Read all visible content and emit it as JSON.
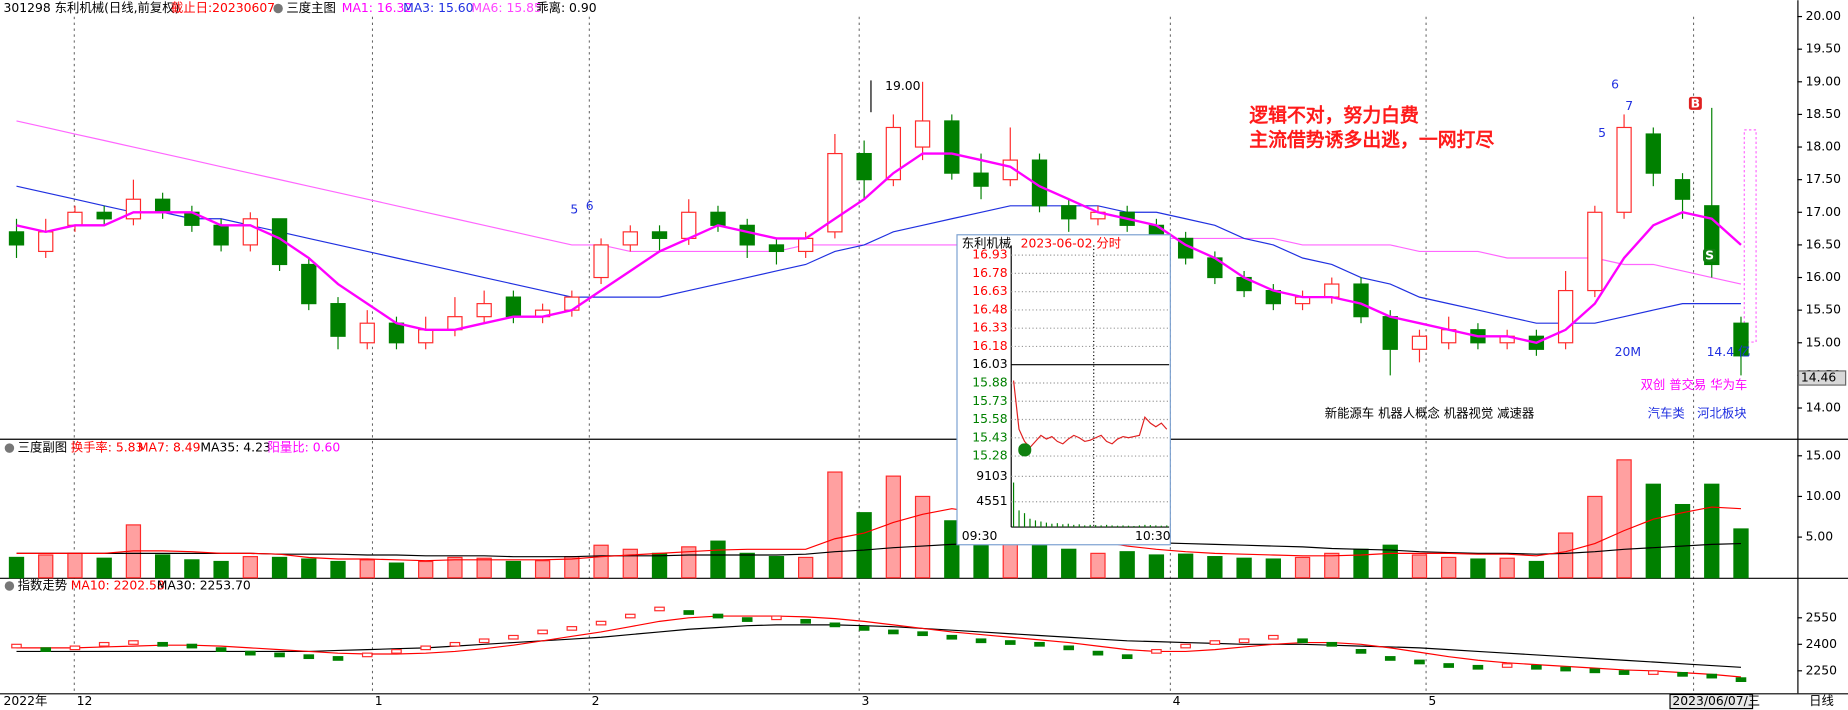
{
  "header": {
    "code_name": "301298 东利机械(日线,前复权)",
    "end_date": "截止日:20230607",
    "indicator": "三度主图",
    "ma1": "MA1: 16.32",
    "ma3": "MA3: 15.60",
    "ma6": "MA6: 15.85",
    "bias": "乖离: 0.90"
  },
  "main": {
    "ylim": [
      13.53,
      20.25
    ],
    "yticks": [
      {
        "value": 20,
        "label": "20.00"
      },
      {
        "value": 19.5,
        "label": "19.50"
      },
      {
        "value": 19,
        "label": "19.00"
      },
      {
        "value": 18.5,
        "label": "18.50"
      },
      {
        "value": 18,
        "label": "18.00"
      },
      {
        "value": 17.5,
        "label": "17.50"
      },
      {
        "value": 17,
        "label": "17.00"
      },
      {
        "value": 16.5,
        "label": "16.50"
      },
      {
        "value": 16,
        "label": "16.00"
      },
      {
        "value": 15.5,
        "label": "15.50"
      },
      {
        "value": 15,
        "label": "15.00"
      },
      {
        "value": 14.5,
        "label": "14.50"
      },
      {
        "value": 14,
        "label": "14.00"
      }
    ],
    "last_price": {
      "value": 14.46,
      "label": "14.46"
    },
    "colors": {
      "up": "#ff2a2a",
      "down": "#008000",
      "ma1": "#ff00ff",
      "ma3": "#2030e0",
      "ma6": "#ff66ff"
    },
    "ohlc": [
      [
        16.7,
        16.9,
        16.3,
        16.5
      ],
      [
        16.4,
        16.9,
        16.3,
        16.7
      ],
      [
        16.8,
        17.1,
        16.7,
        17.0
      ],
      [
        17.0,
        17.1,
        16.8,
        16.9
      ],
      [
        16.9,
        17.5,
        16.8,
        17.2
      ],
      [
        17.2,
        17.3,
        16.9,
        17.0
      ],
      [
        17.0,
        17.1,
        16.7,
        16.8
      ],
      [
        16.8,
        16.9,
        16.4,
        16.5
      ],
      [
        16.5,
        17.0,
        16.4,
        16.9
      ],
      [
        16.9,
        16.9,
        16.1,
        16.2
      ],
      [
        16.2,
        16.3,
        15.5,
        15.6
      ],
      [
        15.6,
        15.7,
        14.9,
        15.1
      ],
      [
        15.0,
        15.5,
        14.9,
        15.3
      ],
      [
        15.3,
        15.4,
        14.9,
        15.0
      ],
      [
        15.0,
        15.4,
        14.9,
        15.2
      ],
      [
        15.2,
        15.7,
        15.1,
        15.4
      ],
      [
        15.4,
        15.8,
        15.3,
        15.6
      ],
      [
        15.7,
        15.8,
        15.3,
        15.4
      ],
      [
        15.4,
        15.6,
        15.3,
        15.5
      ],
      [
        15.5,
        15.8,
        15.4,
        15.7
      ],
      [
        16.0,
        16.6,
        15.9,
        16.5
      ],
      [
        16.5,
        16.8,
        16.4,
        16.7
      ],
      [
        16.7,
        16.8,
        16.4,
        16.6
      ],
      [
        16.6,
        17.2,
        16.5,
        17.0
      ],
      [
        17.0,
        17.1,
        16.7,
        16.8
      ],
      [
        16.8,
        16.9,
        16.3,
        16.5
      ],
      [
        16.5,
        16.6,
        16.2,
        16.4
      ],
      [
        16.4,
        16.7,
        16.3,
        16.6
      ],
      [
        16.7,
        18.2,
        16.6,
        17.9
      ],
      [
        17.9,
        18.1,
        17.2,
        17.5
      ],
      [
        17.5,
        18.5,
        17.4,
        18.3
      ],
      [
        18.0,
        19.0,
        17.8,
        18.4
      ],
      [
        18.4,
        18.5,
        17.5,
        17.6
      ],
      [
        17.6,
        17.9,
        17.2,
        17.4
      ],
      [
        17.5,
        18.3,
        17.4,
        17.8
      ],
      [
        17.8,
        17.9,
        17.0,
        17.1
      ],
      [
        17.1,
        17.2,
        16.7,
        16.9
      ],
      [
        16.9,
        17.1,
        16.8,
        17.0
      ],
      [
        17.0,
        17.1,
        16.7,
        16.8
      ],
      [
        16.8,
        16.9,
        16.5,
        16.6
      ],
      [
        16.6,
        16.7,
        16.2,
        16.3
      ],
      [
        16.3,
        16.4,
        15.9,
        16.0
      ],
      [
        16.0,
        16.1,
        15.7,
        15.8
      ],
      [
        15.8,
        15.9,
        15.5,
        15.6
      ],
      [
        15.6,
        15.8,
        15.5,
        15.7
      ],
      [
        15.7,
        16.0,
        15.6,
        15.9
      ],
      [
        15.9,
        16.0,
        15.3,
        15.4
      ],
      [
        15.4,
        15.5,
        14.5,
        14.9
      ],
      [
        14.9,
        15.2,
        14.7,
        15.1
      ],
      [
        15.0,
        15.4,
        14.9,
        15.2
      ],
      [
        15.2,
        15.3,
        14.9,
        15.0
      ],
      [
        15.0,
        15.2,
        14.9,
        15.1
      ],
      [
        15.1,
        15.2,
        14.8,
        14.9
      ],
      [
        15.0,
        16.1,
        14.9,
        15.8
      ],
      [
        15.8,
        17.1,
        15.7,
        17.0
      ],
      [
        17.0,
        18.5,
        16.9,
        18.3
      ],
      [
        18.2,
        18.3,
        17.4,
        17.6
      ],
      [
        17.5,
        17.6,
        16.9,
        17.2
      ],
      [
        17.1,
        18.6,
        16.0,
        16.2
      ],
      [
        15.3,
        15.4,
        14.5,
        14.8
      ]
    ],
    "ma1": [
      16.8,
      16.7,
      16.8,
      16.8,
      17.0,
      17.0,
      17.0,
      16.8,
      16.8,
      16.6,
      16.3,
      15.9,
      15.6,
      15.3,
      15.2,
      15.2,
      15.3,
      15.4,
      15.4,
      15.5,
      15.8,
      16.1,
      16.4,
      16.6,
      16.8,
      16.7,
      16.6,
      16.6,
      16.9,
      17.2,
      17.6,
      17.9,
      17.9,
      17.8,
      17.7,
      17.4,
      17.2,
      17.0,
      16.9,
      16.8,
      16.5,
      16.3,
      16.0,
      15.8,
      15.7,
      15.7,
      15.6,
      15.4,
      15.3,
      15.2,
      15.1,
      15.1,
      15.0,
      15.2,
      15.6,
      16.3,
      16.8,
      17.0,
      16.9,
      16.5
    ],
    "ma3": [
      17.4,
      17.3,
      17.2,
      17.1,
      17.0,
      17.0,
      16.9,
      16.9,
      16.8,
      16.7,
      16.6,
      16.5,
      16.4,
      16.3,
      16.2,
      16.1,
      16.0,
      15.9,
      15.8,
      15.7,
      15.7,
      15.7,
      15.7,
      15.8,
      15.9,
      16.0,
      16.1,
      16.2,
      16.4,
      16.5,
      16.7,
      16.8,
      16.9,
      17.0,
      17.1,
      17.1,
      17.1,
      17.1,
      17.0,
      17.0,
      16.9,
      16.8,
      16.6,
      16.5,
      16.3,
      16.2,
      16.0,
      15.9,
      15.7,
      15.6,
      15.5,
      15.4,
      15.3,
      15.3,
      15.3,
      15.4,
      15.5,
      15.6,
      15.6,
      15.6
    ],
    "ma6": [
      18.4,
      18.3,
      18.2,
      18.1,
      18.0,
      17.9,
      17.8,
      17.7,
      17.6,
      17.5,
      17.4,
      17.3,
      17.2,
      17.1,
      17.0,
      16.9,
      16.8,
      16.7,
      16.6,
      16.5,
      16.5,
      16.4,
      16.4,
      16.4,
      16.4,
      16.4,
      16.4,
      16.5,
      16.5,
      16.5,
      16.5,
      16.5,
      16.5,
      16.5,
      16.5,
      16.6,
      16.6,
      16.6,
      16.6,
      16.6,
      16.6,
      16.6,
      16.6,
      16.6,
      16.5,
      16.5,
      16.5,
      16.5,
      16.4,
      16.4,
      16.4,
      16.3,
      16.3,
      16.3,
      16.3,
      16.2,
      16.2,
      16.1,
      16.0,
      15.9
    ]
  },
  "annotations": {
    "high": "19.00",
    "wave_a5": "5",
    "wave_a6": "6",
    "wave_b6": "6",
    "wave_b7": "7",
    "wave_b5": "5",
    "comment_1": "逻辑不对，努力白费",
    "comment_2": "主流借势诱多出逃，一网打尽",
    "amount": "20M",
    "market_cap": "14.4 亿",
    "tags": "双创 普交易 华为车",
    "sector_1": "汽车类",
    "sector_2": "河北板块",
    "concepts": "新能源车 机器人概念 机器视觉 减速器",
    "buy": "B",
    "sell": "S"
  },
  "volume": {
    "title": "三度副图",
    "turnover": "换手率: 5.83",
    "ma7": "MA7: 8.49",
    "ma35": "MA35: 4.23",
    "ratio": "阳量比: 0.60",
    "ylim": [
      0,
      16.96
    ],
    "yticks": [
      {
        "value": 15,
        "label": "15.00"
      },
      {
        "value": 10,
        "label": "10.00"
      },
      {
        "value": 5,
        "label": "5.00"
      }
    ],
    "values": [
      2.5,
      2.8,
      3.0,
      2.4,
      6.5,
      2.8,
      2.2,
      2.0,
      2.6,
      2.5,
      2.3,
      2.0,
      2.2,
      1.8,
      2.0,
      2.5,
      2.4,
      2.0,
      2.1,
      2.6,
      4.0,
      3.5,
      3.0,
      3.8,
      4.5,
      3.0,
      2.6,
      2.5,
      13.0,
      8.0,
      12.5,
      10.0,
      7.0,
      5.0,
      6.0,
      4.5,
      3.5,
      3.0,
      3.2,
      2.8,
      2.9,
      2.6,
      2.4,
      2.3,
      2.5,
      3.0,
      3.5,
      4.0,
      2.8,
      2.5,
      2.3,
      2.4,
      2.0,
      5.5,
      10.0,
      14.5,
      11.5,
      9.0,
      11.5,
      6.0
    ],
    "ma7_values": [
      3.0,
      3.0,
      3.0,
      3.0,
      3.3,
      3.3,
      3.2,
      3.0,
      3.0,
      2.9,
      2.5,
      2.3,
      2.3,
      2.2,
      2.1,
      2.2,
      2.2,
      2.2,
      2.2,
      2.3,
      2.6,
      2.8,
      3.0,
      3.2,
      3.4,
      3.5,
      3.5,
      3.5,
      4.8,
      5.5,
      6.8,
      7.8,
      8.5,
      8.0,
      7.8,
      6.5,
      5.5,
      4.5,
      3.9,
      3.5,
      3.2,
      3.0,
      2.9,
      2.8,
      2.7,
      2.7,
      2.8,
      3.0,
      3.0,
      3.0,
      2.9,
      2.9,
      2.7,
      3.2,
      4.2,
      5.8,
      7.2,
      8.0,
      8.7,
      8.5
    ],
    "ma35_values": [
      3.0,
      3.0,
      3.0,
      3.0,
      3.0,
      3.0,
      3.0,
      3.0,
      3.0,
      2.9,
      2.9,
      2.9,
      2.8,
      2.8,
      2.7,
      2.7,
      2.7,
      2.6,
      2.6,
      2.6,
      2.7,
      2.7,
      2.7,
      2.8,
      2.8,
      2.8,
      2.8,
      2.9,
      3.2,
      3.4,
      3.7,
      3.9,
      4.1,
      4.2,
      4.3,
      4.3,
      4.4,
      4.4,
      4.4,
      4.3,
      4.2,
      4.1,
      4.0,
      3.9,
      3.8,
      3.6,
      3.5,
      3.4,
      3.2,
      3.1,
      3.0,
      3.0,
      2.9,
      3.0,
      3.2,
      3.5,
      3.7,
      3.9,
      4.1,
      4.2
    ]
  },
  "index": {
    "title": "指数走势",
    "ma10": "MA10: 2202.58",
    "ma30": "MA30: 2253.70",
    "ylim": [
      2123,
      2770
    ],
    "yticks": [
      2550,
      2400,
      2250
    ],
    "values": [
      2390,
      2370,
      2380,
      2400,
      2410,
      2400,
      2390,
      2370,
      2350,
      2340,
      2330,
      2320,
      2340,
      2360,
      2380,
      2400,
      2420,
      2440,
      2470,
      2490,
      2520,
      2560,
      2600,
      2580,
      2560,
      2540,
      2550,
      2530,
      2510,
      2490,
      2470,
      2460,
      2440,
      2420,
      2410,
      2400,
      2380,
      2350,
      2330,
      2360,
      2390,
      2410,
      2420,
      2440,
      2420,
      2400,
      2360,
      2320,
      2300,
      2280,
      2270,
      2280,
      2270,
      2260,
      2250,
      2240,
      2240,
      2230,
      2220,
      2200
    ],
    "ma10_values": [
      2380,
      2380,
      2380,
      2385,
      2390,
      2395,
      2395,
      2390,
      2380,
      2370,
      2360,
      2350,
      2345,
      2345,
      2350,
      2360,
      2375,
      2395,
      2420,
      2445,
      2470,
      2500,
      2530,
      2550,
      2560,
      2560,
      2560,
      2555,
      2545,
      2530,
      2510,
      2490,
      2470,
      2455,
      2440,
      2425,
      2410,
      2390,
      2370,
      2360,
      2360,
      2370,
      2385,
      2400,
      2410,
      2410,
      2400,
      2380,
      2355,
      2330,
      2310,
      2295,
      2285,
      2275,
      2265,
      2255,
      2250,
      2240,
      2230,
      2215
    ],
    "ma30_values": [
      2360,
      2360,
      2360,
      2360,
      2360,
      2360,
      2360,
      2360,
      2360,
      2360,
      2360,
      2365,
      2370,
      2375,
      2380,
      2390,
      2400,
      2410,
      2420,
      2430,
      2440,
      2455,
      2470,
      2485,
      2495,
      2505,
      2510,
      2510,
      2510,
      2505,
      2500,
      2490,
      2480,
      2470,
      2460,
      2450,
      2440,
      2430,
      2420,
      2415,
      2410,
      2405,
      2400,
      2400,
      2400,
      2395,
      2390,
      2385,
      2380,
      2370,
      2360,
      2350,
      2340,
      2330,
      2320,
      2310,
      2300,
      2290,
      2280,
      2270
    ]
  },
  "inset": {
    "name": "东利机械",
    "date": "2023-06-02 分时",
    "ylim": [
      15.2,
      17.01
    ],
    "yticks": [
      {
        "value": 16.93,
        "label": "16.93"
      },
      {
        "value": 16.78,
        "label": "16.78"
      },
      {
        "value": 16.63,
        "label": "16.63"
      },
      {
        "value": 16.48,
        "label": "16.48"
      },
      {
        "value": 16.33,
        "label": "16.33"
      },
      {
        "value": 16.18,
        "label": "16.18"
      },
      {
        "value": 16.03,
        "label": "16.03"
      },
      {
        "value": 15.88,
        "label": "15.88"
      },
      {
        "value": 15.73,
        "label": "15.73"
      },
      {
        "value": 15.58,
        "label": "15.58"
      },
      {
        "value": 15.43,
        "label": "15.43"
      },
      {
        "value": 15.28,
        "label": "15.28"
      }
    ],
    "vol_ylim": [
      0,
      10585
    ],
    "vol_ticks": [
      9103,
      4551
    ],
    "time_start": "09:30",
    "time_end": "10:30",
    "prices": [
      15.9,
      15.5,
      15.4,
      15.35,
      15.4,
      15.45,
      15.42,
      15.44,
      15.4,
      15.38,
      15.42,
      15.45,
      15.43,
      15.4,
      15.41,
      15.43,
      15.45,
      15.4,
      15.38,
      15.42,
      15.44,
      15.43,
      15.44,
      15.45,
      15.6,
      15.55,
      15.52,
      15.55,
      15.5
    ],
    "volumes": [
      8000,
      3000,
      2500,
      1500,
      1200,
      1000,
      800,
      600,
      700,
      500,
      600,
      400,
      500,
      300,
      400,
      350,
      300,
      400,
      300,
      250,
      300,
      250,
      200,
      300,
      400,
      350,
      300,
      250,
      300
    ]
  },
  "x_axis": {
    "year": "2022年",
    "m12": "12",
    "m1": "1",
    "m2": "2",
    "m3": "3",
    "m4": "4",
    "m5": "5",
    "current_date": "2023/06/07/三",
    "period": "日线"
  }
}
